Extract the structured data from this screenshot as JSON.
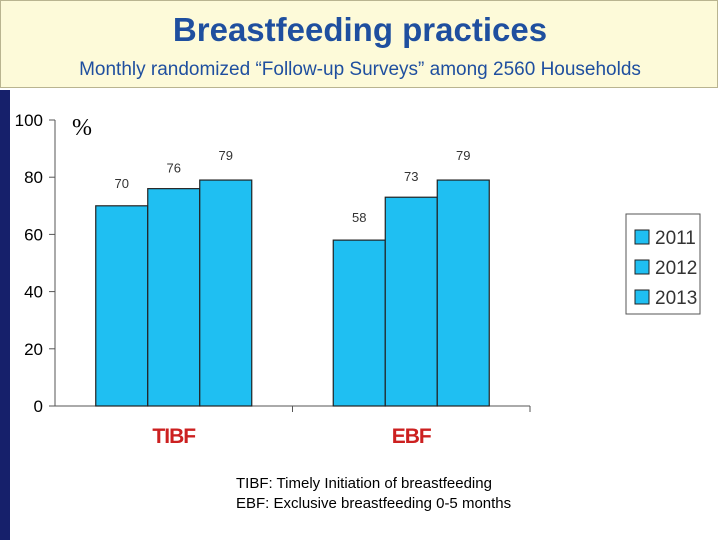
{
  "header": {
    "title": "Breastfeeding practices",
    "subtitle": "Monthly randomized “Follow-up Surveys” among 2560 Households"
  },
  "chart_data": {
    "type": "bar",
    "title": "",
    "ylabel": "%",
    "xlabel": "",
    "categories": [
      "TIBF",
      "EBF"
    ],
    "series": [
      {
        "name": "2011",
        "values": [
          70,
          58
        ]
      },
      {
        "name": "2012",
        "values": [
          76,
          73
        ]
      },
      {
        "name": "2013",
        "values": [
          79,
          79
        ]
      }
    ],
    "ylim": [
      0,
      100
    ],
    "yticks": [
      0,
      20,
      40,
      60,
      80,
      100
    ],
    "legend_position": "right",
    "bar_color": "#1fbff2",
    "grid": false
  },
  "footnote": {
    "line1": "TIBF: Timely Initiation of breastfeeding",
    "line2": "EBF: Exclusive breastfeeding 0-5 months"
  },
  "colors": {
    "title": "#1f4f9f",
    "header_bg": "#fdfad9",
    "left_bar": "#16206b"
  }
}
